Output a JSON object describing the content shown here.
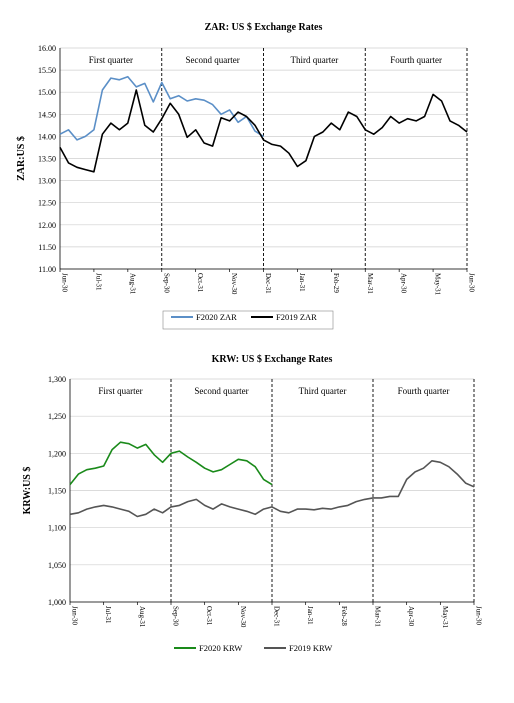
{
  "chart_data": [
    {
      "type": "line",
      "title": "ZAR: US $ Exchange Rates",
      "ylabel": "ZAR:US $",
      "ylim": [
        11.0,
        16.0
      ],
      "yticks": [
        "11.00",
        "11.50",
        "12.00",
        "12.50",
        "13.00",
        "13.50",
        "14.00",
        "14.50",
        "15.00",
        "15.50",
        "16.00"
      ],
      "x_tick_labels": [
        "Jun-30",
        "Jul-31",
        "Aug-31",
        "Sep-30",
        "Oct-31",
        "Nov-30",
        "Dec-31",
        "Jan-31",
        "Feb-29",
        "Mar-31",
        "Apr-30",
        "May-31",
        "Jun-30"
      ],
      "quarters": [
        "First quarter",
        "Second quarter",
        "Third quarter",
        "Fourth quarter"
      ],
      "legend_position": "bottom",
      "series": [
        {
          "name": "F2020 ZAR",
          "color": "#5b8fc7",
          "x": [
            0,
            0.25,
            0.5,
            0.75,
            1,
            1.25,
            1.5,
            1.75,
            2,
            2.25,
            2.5,
            2.75,
            3,
            3.25,
            3.5,
            3.75,
            4,
            4.25,
            4.5,
            4.75,
            5,
            5.25,
            5.5,
            5.75,
            6
          ],
          "values": [
            14.05,
            14.15,
            13.92,
            14.0,
            14.15,
            15.05,
            15.32,
            15.28,
            15.35,
            15.12,
            15.2,
            14.78,
            15.22,
            14.85,
            14.92,
            14.8,
            14.85,
            14.82,
            14.72,
            14.5,
            14.6,
            14.32,
            14.45,
            14.12,
            14.0
          ]
        },
        {
          "name": "F2019 ZAR",
          "color": "#000000",
          "x": [
            0,
            0.25,
            0.5,
            0.75,
            1,
            1.25,
            1.5,
            1.75,
            2,
            2.25,
            2.5,
            2.75,
            3,
            3.25,
            3.5,
            3.75,
            4,
            4.25,
            4.5,
            4.75,
            5,
            5.25,
            5.5,
            5.75,
            6,
            6.25,
            6.5,
            6.75,
            7,
            7.25,
            7.5,
            7.75,
            8,
            8.25,
            8.5,
            8.75,
            9,
            9.25,
            9.5,
            9.75,
            10,
            10.25,
            10.5,
            10.75,
            11,
            11.25,
            11.5,
            11.75,
            12
          ],
          "values": [
            13.75,
            13.4,
            13.3,
            13.25,
            13.2,
            14.05,
            14.3,
            14.15,
            14.3,
            15.05,
            14.25,
            14.1,
            14.4,
            14.75,
            14.5,
            13.98,
            14.15,
            13.85,
            13.78,
            14.42,
            14.35,
            14.55,
            14.45,
            14.25,
            13.92,
            13.82,
            13.78,
            13.62,
            13.32,
            13.45,
            14.0,
            14.1,
            14.3,
            14.15,
            14.55,
            14.45,
            14.15,
            14.05,
            14.2,
            14.45,
            14.3,
            14.4,
            14.35,
            14.45,
            14.95,
            14.8,
            14.35,
            14.25,
            14.1
          ]
        }
      ]
    },
    {
      "type": "line",
      "title": "KRW: US $ Exchange Rates",
      "ylabel": "KRW:US $",
      "ylim": [
        1000,
        1300
      ],
      "yticks": [
        "1,000",
        "1,050",
        "1,100",
        "1,150",
        "1,200",
        "1,250",
        "1,300"
      ],
      "x_tick_labels": [
        "Jun-30",
        "Jul-31",
        "Aug-31",
        "Sep-30",
        "Oct-31",
        "Nov-30",
        "Dec-31",
        "Jan-31",
        "Feb-28",
        "Mar-31",
        "Apr-30",
        "May-31",
        "Jun-30"
      ],
      "quarters": [
        "First quarter",
        "Second quarter",
        "Third quarter",
        "Fourth quarter"
      ],
      "legend_position": "bottom",
      "series": [
        {
          "name": "F2020 KRW",
          "color": "#1a8a1a",
          "x": [
            0,
            0.25,
            0.5,
            0.75,
            1,
            1.25,
            1.5,
            1.75,
            2,
            2.25,
            2.5,
            2.75,
            3,
            3.25,
            3.5,
            3.75,
            4,
            4.25,
            4.5,
            4.75,
            5,
            5.25,
            5.5,
            5.75,
            6
          ],
          "values": [
            1158,
            1172,
            1178,
            1180,
            1183,
            1205,
            1215,
            1213,
            1207,
            1212,
            1198,
            1188,
            1200,
            1203,
            1195,
            1188,
            1180,
            1175,
            1178,
            1185,
            1192,
            1190,
            1182,
            1165,
            1158
          ]
        },
        {
          "name": "F2019 KRW",
          "color": "#555555",
          "x": [
            0,
            0.25,
            0.5,
            0.75,
            1,
            1.25,
            1.5,
            1.75,
            2,
            2.25,
            2.5,
            2.75,
            3,
            3.25,
            3.5,
            3.75,
            4,
            4.25,
            4.5,
            4.75,
            5,
            5.25,
            5.5,
            5.75,
            6,
            6.25,
            6.5,
            6.75,
            7,
            7.25,
            7.5,
            7.75,
            8,
            8.25,
            8.5,
            8.75,
            9,
            9.25,
            9.5,
            9.75,
            10,
            10.25,
            10.5,
            10.75,
            11,
            11.25,
            11.5,
            11.75,
            12
          ],
          "values": [
            1118,
            1120,
            1125,
            1128,
            1130,
            1128,
            1125,
            1122,
            1115,
            1118,
            1125,
            1120,
            1128,
            1130,
            1135,
            1138,
            1130,
            1125,
            1132,
            1128,
            1125,
            1122,
            1118,
            1125,
            1128,
            1122,
            1120,
            1125,
            1125,
            1124,
            1126,
            1125,
            1128,
            1130,
            1135,
            1138,
            1140,
            1140,
            1142,
            1142,
            1165,
            1175,
            1180,
            1190,
            1188,
            1182,
            1172,
            1160,
            1155
          ]
        }
      ]
    }
  ]
}
